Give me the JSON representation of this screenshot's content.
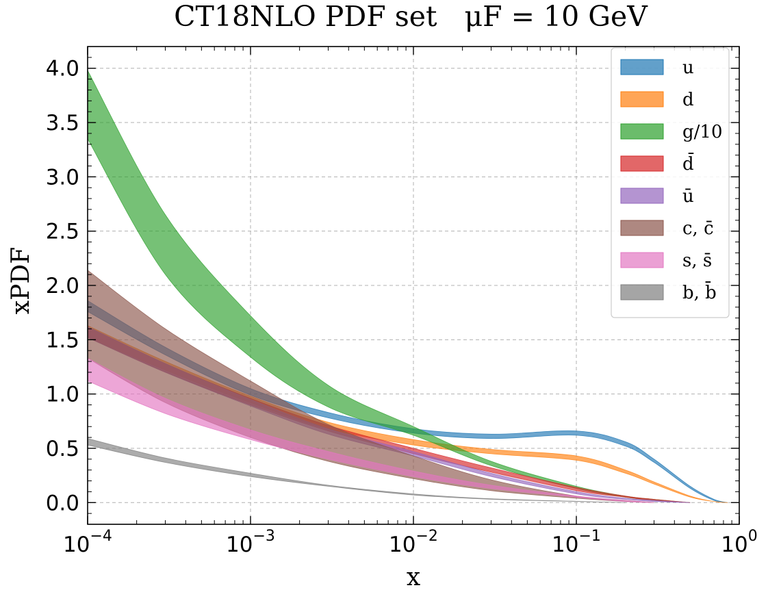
{
  "chart_data": {
    "type": "area",
    "title": "CT18NLO PDF set",
    "title_scale": "μF = 10 GeV",
    "xlabel": "x",
    "ylabel": "xPDF",
    "xscale": "log",
    "xlim": [
      0.0001,
      1
    ],
    "ylim": [
      -0.2,
      4.2
    ],
    "x_ticks": [
      0.0001,
      0.001,
      0.01,
      0.1,
      1
    ],
    "x_tick_labels": [
      {
        "base": "10",
        "exp": "−4"
      },
      {
        "base": "10",
        "exp": "−3"
      },
      {
        "base": "10",
        "exp": "−2"
      },
      {
        "base": "10",
        "exp": "−1"
      },
      {
        "base": "10",
        "exp": "0"
      }
    ],
    "y_ticks": [
      0.0,
      0.5,
      1.0,
      1.5,
      2.0,
      2.5,
      3.0,
      3.5,
      4.0
    ],
    "y_tick_labels": [
      "0.0",
      "0.5",
      "1.0",
      "1.5",
      "2.0",
      "2.5",
      "3.0",
      "3.5",
      "4.0"
    ],
    "grid": true,
    "legend_position": "top-right",
    "series": [
      {
        "name": "u",
        "color": "#1f77b4",
        "x": [
          0.0001,
          0.0003,
          0.001,
          0.003,
          0.01,
          0.03,
          0.1,
          0.2,
          0.3,
          0.5,
          0.7,
          0.85
        ],
        "lower": [
          1.76,
          1.36,
          0.99,
          0.78,
          0.64,
          0.59,
          0.62,
          0.52,
          0.37,
          0.13,
          0.02,
          0.0
        ],
        "upper": [
          1.86,
          1.43,
          1.05,
          0.83,
          0.68,
          0.63,
          0.66,
          0.56,
          0.4,
          0.15,
          0.03,
          0.0
        ]
      },
      {
        "name": "d",
        "color": "#ff7f0e",
        "x": [
          0.0001,
          0.0003,
          0.001,
          0.003,
          0.01,
          0.03,
          0.1,
          0.2,
          0.3,
          0.5,
          0.7,
          0.85
        ],
        "lower": [
          1.52,
          1.22,
          0.92,
          0.68,
          0.53,
          0.45,
          0.39,
          0.27,
          0.17,
          0.05,
          0.01,
          0.0
        ],
        "upper": [
          1.63,
          1.3,
          0.98,
          0.74,
          0.58,
          0.49,
          0.43,
          0.3,
          0.19,
          0.06,
          0.01,
          0.0
        ]
      },
      {
        "name": "g/10",
        "color": "#2ca02c",
        "x": [
          0.0001,
          0.0003,
          0.001,
          0.003,
          0.01,
          0.03,
          0.1,
          0.2,
          0.3,
          0.5
        ],
        "lower": [
          3.35,
          2.1,
          1.34,
          0.88,
          0.62,
          0.34,
          0.13,
          0.05,
          0.02,
          0.0
        ],
        "upper": [
          3.98,
          2.65,
          1.72,
          1.08,
          0.7,
          0.38,
          0.15,
          0.06,
          0.03,
          0.0
        ]
      },
      {
        "name": "d̄",
        "color": "#d62728",
        "x": [
          0.0001,
          0.0003,
          0.001,
          0.003,
          0.01,
          0.03,
          0.1,
          0.2,
          0.3,
          0.5
        ],
        "lower": [
          1.52,
          1.2,
          0.9,
          0.66,
          0.45,
          0.28,
          0.11,
          0.05,
          0.02,
          0.0
        ],
        "upper": [
          1.62,
          1.28,
          0.96,
          0.71,
          0.5,
          0.32,
          0.14,
          0.06,
          0.03,
          0.0
        ]
      },
      {
        "name": "ū",
        "color": "#9467bd",
        "x": [
          0.0001,
          0.0003,
          0.001,
          0.003,
          0.01,
          0.03,
          0.1,
          0.2,
          0.3,
          0.5
        ],
        "lower": [
          1.52,
          1.2,
          0.89,
          0.63,
          0.43,
          0.24,
          0.08,
          0.03,
          0.01,
          0.0
        ],
        "upper": [
          1.62,
          1.28,
          0.95,
          0.68,
          0.47,
          0.27,
          0.1,
          0.04,
          0.02,
          0.0
        ]
      },
      {
        "name": "c, c̄",
        "color": "#8c564b",
        "x": [
          0.0001,
          0.0003,
          0.001,
          0.003,
          0.01,
          0.03,
          0.1,
          0.2,
          0.3
        ],
        "lower": [
          1.33,
          0.92,
          0.6,
          0.38,
          0.22,
          0.11,
          0.04,
          0.01,
          0.0
        ],
        "upper": [
          2.14,
          1.6,
          1.12,
          0.72,
          0.43,
          0.21,
          0.06,
          0.02,
          0.0
        ]
      },
      {
        "name": "s, s̄",
        "color": "#e377c2",
        "x": [
          0.0001,
          0.0003,
          0.001,
          0.003,
          0.01,
          0.03,
          0.1,
          0.2,
          0.3
        ],
        "lower": [
          1.12,
          0.82,
          0.58,
          0.4,
          0.24,
          0.13,
          0.05,
          0.01,
          0.0
        ],
        "upper": [
          1.33,
          0.96,
          0.67,
          0.47,
          0.29,
          0.16,
          0.06,
          0.02,
          0.0
        ]
      },
      {
        "name": "b, b̄",
        "color": "#7f7f7f",
        "x": [
          0.0001,
          0.0003,
          0.001,
          0.003,
          0.01,
          0.03,
          0.1,
          0.2
        ],
        "lower": [
          0.53,
          0.37,
          0.24,
          0.15,
          0.07,
          0.03,
          0.01,
          0.0
        ],
        "upper": [
          0.59,
          0.41,
          0.27,
          0.16,
          0.08,
          0.035,
          0.012,
          0.0
        ]
      }
    ]
  }
}
